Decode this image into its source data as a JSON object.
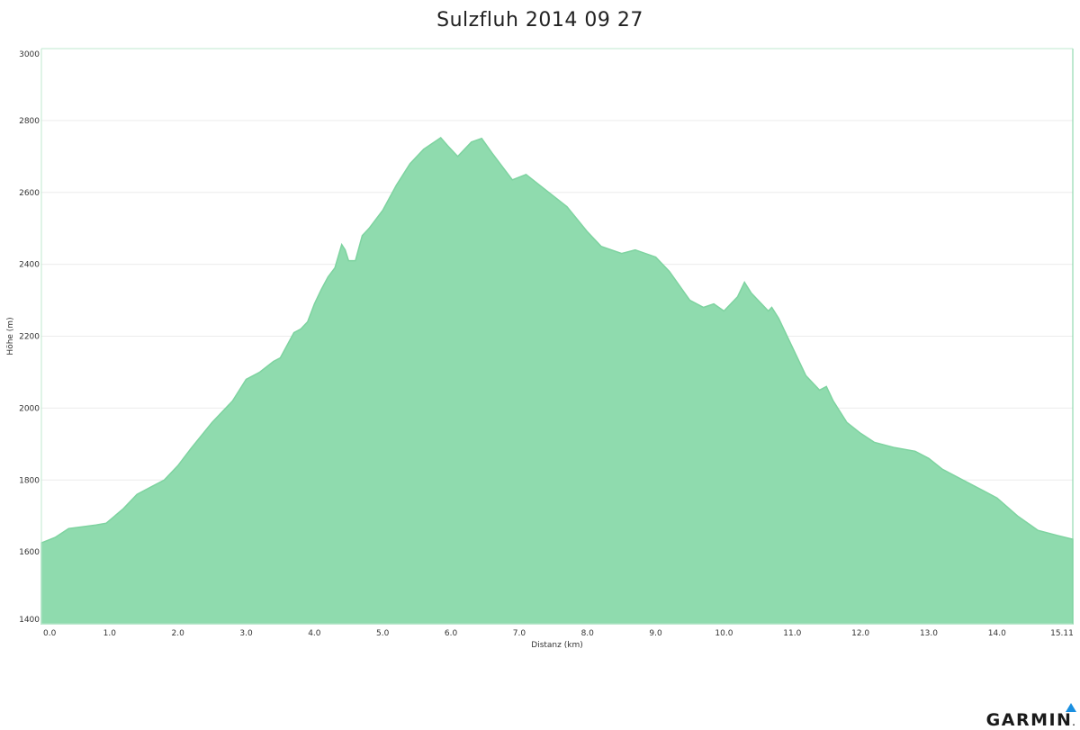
{
  "chart_data": {
    "type": "area",
    "title": "Sulzfluh 2014 09 27",
    "xlabel": "Distanz   (km)",
    "ylabel": "Höhe (m)",
    "xlim": [
      0,
      15.11
    ],
    "ylim": [
      1400,
      3000
    ],
    "xticks": [
      "0.0",
      "1.0",
      "2.0",
      "3.0",
      "4.0",
      "5.0",
      "6.0",
      "7.0",
      "8.0",
      "9.0",
      "10.0",
      "11.0",
      "12.0",
      "13.0",
      "14.0",
      "15.11"
    ],
    "yticks": [
      "1400",
      "1600",
      "1800",
      "2000",
      "2200",
      "2400",
      "2600",
      "2800",
      "3000"
    ],
    "grid": "horizontal",
    "fill_color": "#8fdbae",
    "line_color": "#7ed3a0",
    "series": [
      {
        "x": [
          0.0,
          0.2,
          0.4,
          0.6,
          0.8,
          0.95,
          1.2,
          1.4,
          1.6,
          1.8,
          2.0,
          2.2,
          2.5,
          2.8,
          3.0,
          3.2,
          3.4,
          3.5,
          3.7,
          3.8,
          3.9,
          4.0,
          4.1,
          4.2,
          4.3,
          4.4,
          4.45,
          4.5,
          4.6,
          4.7,
          4.8,
          5.0,
          5.2,
          5.4,
          5.6,
          5.85,
          5.95,
          6.1,
          6.3,
          6.45,
          6.6,
          6.8,
          6.9,
          7.1,
          7.3,
          7.5,
          7.7,
          8.0,
          8.2,
          8.5,
          8.7,
          9.0,
          9.2,
          9.5,
          9.7,
          9.85,
          10.0,
          10.2,
          10.3,
          10.4,
          10.5,
          10.65,
          10.7,
          10.8,
          11.0,
          11.2,
          11.4,
          11.5,
          11.6,
          11.8,
          12.0,
          12.2,
          12.5,
          12.8,
          13.0,
          13.2,
          13.5,
          13.8,
          14.0,
          14.3,
          14.6,
          14.9,
          15.11
        ],
        "y": [
          1625,
          1640,
          1665,
          1670,
          1675,
          1680,
          1720,
          1760,
          1780,
          1800,
          1840,
          1890,
          1960,
          2020,
          2080,
          2100,
          2130,
          2140,
          2210,
          2220,
          2240,
          2290,
          2330,
          2365,
          2390,
          2455,
          2440,
          2410,
          2410,
          2480,
          2500,
          2550,
          2620,
          2680,
          2720,
          2752,
          2730,
          2700,
          2740,
          2750,
          2710,
          2660,
          2635,
          2650,
          2620,
          2590,
          2560,
          2490,
          2450,
          2430,
          2440,
          2420,
          2380,
          2300,
          2280,
          2290,
          2270,
          2310,
          2350,
          2320,
          2300,
          2270,
          2280,
          2250,
          2170,
          2090,
          2050,
          2060,
          2020,
          1960,
          1930,
          1905,
          1890,
          1880,
          1860,
          1830,
          1800,
          1770,
          1750,
          1700,
          1660,
          1645,
          1635
        ]
      }
    ]
  }
}
